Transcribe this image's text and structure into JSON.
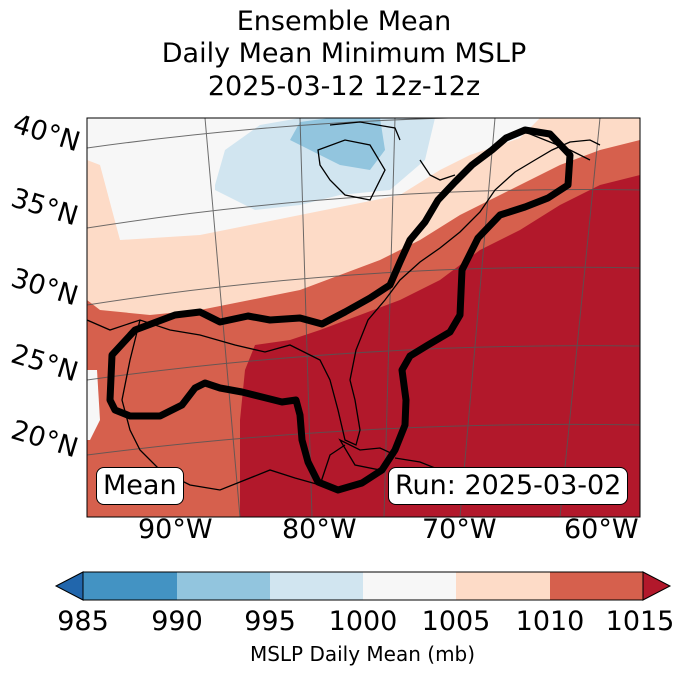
{
  "title": {
    "line1": "Ensemble Mean",
    "line2": "Daily Mean Minimum MSLP",
    "line3": "2025-03-12 12z-12z"
  },
  "lat_labels": [
    "40°N",
    "35°N",
    "30°N",
    "25°N",
    "20°N"
  ],
  "lon_labels": [
    "90°W",
    "80°W",
    "70°W",
    "60°W"
  ],
  "boxes": {
    "mean": "Mean",
    "run": "Run: 2025-03-02"
  },
  "colorbar": {
    "ticks": [
      "985",
      "990",
      "995",
      "1000",
      "1005",
      "1010",
      "1015"
    ],
    "label": "MSLP Daily Mean (mb)",
    "colors": {
      "below": "#2166ac",
      "985-990": "#4393c3",
      "990-995": "#92c5de",
      "995-1000": "#d1e5f0",
      "1000-1005": "#f7f7f7",
      "1005-1010": "#fddbc7",
      "1010-1015": "#d6604d",
      "above": "#b2182b"
    }
  },
  "map": {
    "projection": "lambert-conformal",
    "extent_lon": [
      -97,
      -58
    ],
    "extent_lat": [
      15,
      42
    ],
    "contour": "Ensemble mean minimum MSLP region outline",
    "borders": "coastlines-and-lakes"
  }
}
